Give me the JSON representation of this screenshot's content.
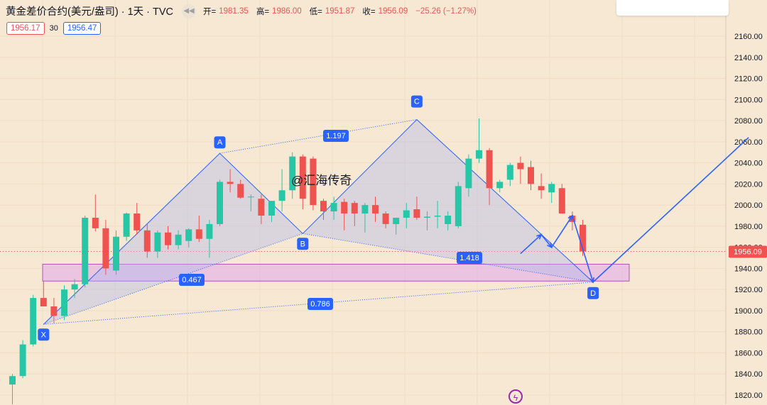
{
  "header": {
    "title": "黄金差价合约(美元/盎司) · 1天 · TVC",
    "collapse_icon": "double-chevron-left-icon",
    "open_label": "开=",
    "open_value": "1981.35",
    "high_label": "高=",
    "high_value": "1986.00",
    "low_label": "低=",
    "low_value": "1951.87",
    "close_label": "收=",
    "close_value": "1956.09",
    "change": "−25.26 (−1.27%)"
  },
  "trade": {
    "sell_price": "1956.17",
    "spread": "30",
    "buy_price": "1956.47"
  },
  "watermark": "@汇海传奇",
  "flash_icon": "lightning-bolt-icon",
  "colors": {
    "up": "#26c6a6",
    "down": "#ef5350",
    "pattern_line": "#2962ff",
    "pattern_fill": "#b0b8ea",
    "zone_fill": "#e6b8e6",
    "background": "#f7e8d4"
  },
  "chart_data": {
    "type": "candlestick",
    "y_axis": {
      "min": 1810,
      "max": 2180,
      "ticks": [
        1820,
        1840,
        1860,
        1880,
        1900,
        1920,
        1940,
        1960,
        1980,
        2000,
        2020,
        2040,
        2060,
        2080,
        2100,
        2120,
        2140,
        2160
      ],
      "side": "right"
    },
    "last_price": "1956.09",
    "candles": [
      {
        "o": 1830,
        "h": 1840,
        "l": 1810,
        "c": 1838
      },
      {
        "o": 1838,
        "h": 1872,
        "l": 1836,
        "c": 1868
      },
      {
        "o": 1868,
        "h": 1915,
        "l": 1866,
        "c": 1912
      },
      {
        "o": 1912,
        "h": 1928,
        "l": 1906,
        "c": 1904
      },
      {
        "o": 1904,
        "h": 1912,
        "l": 1888,
        "c": 1895
      },
      {
        "o": 1895,
        "h": 1924,
        "l": 1891,
        "c": 1920
      },
      {
        "o": 1920,
        "h": 1930,
        "l": 1912,
        "c": 1925
      },
      {
        "o": 1925,
        "h": 1990,
        "l": 1922,
        "c": 1988
      },
      {
        "o": 1988,
        "h": 2010,
        "l": 1975,
        "c": 1978
      },
      {
        "o": 1978,
        "h": 1986,
        "l": 1934,
        "c": 1940
      },
      {
        "o": 1938,
        "h": 1976,
        "l": 1934,
        "c": 1970
      },
      {
        "o": 1970,
        "h": 1993,
        "l": 1966,
        "c": 1992
      },
      {
        "o": 1992,
        "h": 2002,
        "l": 1972,
        "c": 1976
      },
      {
        "o": 1976,
        "h": 1982,
        "l": 1950,
        "c": 1956
      },
      {
        "o": 1956,
        "h": 1976,
        "l": 1950,
        "c": 1974
      },
      {
        "o": 1974,
        "h": 1980,
        "l": 1958,
        "c": 1962
      },
      {
        "o": 1962,
        "h": 1976,
        "l": 1958,
        "c": 1972
      },
      {
        "o": 1966,
        "h": 1978,
        "l": 1960,
        "c": 1977
      },
      {
        "o": 1977,
        "h": 1990,
        "l": 1965,
        "c": 1968
      },
      {
        "o": 1968,
        "h": 1986,
        "l": 1950,
        "c": 1982
      },
      {
        "o": 1982,
        "h": 2024,
        "l": 1980,
        "c": 2022
      },
      {
        "o": 2022,
        "h": 2034,
        "l": 2012,
        "c": 2020
      },
      {
        "o": 2020,
        "h": 2024,
        "l": 2006,
        "c": 2007
      },
      {
        "o": 2008,
        "h": 2010,
        "l": 1994,
        "c": 2008
      },
      {
        "o": 2006,
        "h": 2010,
        "l": 1982,
        "c": 1990
      },
      {
        "o": 1990,
        "h": 2002,
        "l": 1984,
        "c": 2004
      },
      {
        "o": 2004,
        "h": 2034,
        "l": 1994,
        "c": 2014
      },
      {
        "o": 2014,
        "h": 2050,
        "l": 2006,
        "c": 2046
      },
      {
        "o": 2046,
        "h": 2048,
        "l": 1996,
        "c": 2006
      },
      {
        "o": 2044,
        "h": 2046,
        "l": 1995,
        "c": 2000
      },
      {
        "o": 2004,
        "h": 2006,
        "l": 1986,
        "c": 1994
      },
      {
        "o": 1994,
        "h": 2008,
        "l": 1986,
        "c": 2002
      },
      {
        "o": 2003,
        "h": 2006,
        "l": 1976,
        "c": 1992
      },
      {
        "o": 2002,
        "h": 2004,
        "l": 1980,
        "c": 1992
      },
      {
        "o": 1992,
        "h": 2002,
        "l": 1974,
        "c": 2000
      },
      {
        "o": 2000,
        "h": 2008,
        "l": 1984,
        "c": 1992
      },
      {
        "o": 1992,
        "h": 1994,
        "l": 1978,
        "c": 1982
      },
      {
        "o": 1982,
        "h": 1988,
        "l": 1972,
        "c": 1988
      },
      {
        "o": 1988,
        "h": 2002,
        "l": 1978,
        "c": 1995
      },
      {
        "o": 1996,
        "h": 2008,
        "l": 1986,
        "c": 1988
      },
      {
        "o": 1988,
        "h": 1994,
        "l": 1976,
        "c": 1989
      },
      {
        "o": 1989,
        "h": 2004,
        "l": 1978,
        "c": 1990
      },
      {
        "o": 1982,
        "h": 1994,
        "l": 1976,
        "c": 1990
      },
      {
        "o": 1980,
        "h": 2022,
        "l": 1978,
        "c": 2018
      },
      {
        "o": 2016,
        "h": 2048,
        "l": 2008,
        "c": 2044
      },
      {
        "o": 2044,
        "h": 2082,
        "l": 2040,
        "c": 2052
      },
      {
        "o": 2052,
        "h": 2054,
        "l": 2000,
        "c": 2016
      },
      {
        "o": 2016,
        "h": 2024,
        "l": 2012,
        "c": 2022
      },
      {
        "o": 2024,
        "h": 2040,
        "l": 2018,
        "c": 2038
      },
      {
        "o": 2040,
        "h": 2046,
        "l": 2020,
        "c": 2034
      },
      {
        "o": 2036,
        "h": 2042,
        "l": 2014,
        "c": 2020
      },
      {
        "o": 2018,
        "h": 2030,
        "l": 2006,
        "c": 2014
      },
      {
        "o": 2012,
        "h": 2022,
        "l": 2002,
        "c": 2020
      },
      {
        "o": 2016,
        "h": 2020,
        "l": 1992,
        "c": 1992
      },
      {
        "o": 1990,
        "h": 1994,
        "l": 1976,
        "c": 1984
      },
      {
        "o": 1981.35,
        "h": 1986,
        "l": 1951.87,
        "c": 1956.09
      }
    ],
    "harmonic_pattern": {
      "points": [
        {
          "label": "X",
          "index": 3,
          "price": 1887
        },
        {
          "label": "A",
          "index": 20,
          "price": 2049
        },
        {
          "label": "B",
          "index": 28,
          "price": 1973
        },
        {
          "label": "C",
          "index": 39,
          "price": 2081
        },
        {
          "label": "D",
          "index": 56,
          "price": 1927
        }
      ],
      "ratios": [
        "1.197",
        "0.467",
        "1.418",
        "0.786"
      ]
    },
    "zone": {
      "from_price": 1928,
      "to_price": 1944
    },
    "projection": [
      {
        "index": 49,
        "price": 1954
      },
      {
        "index": 51,
        "price": 1972
      },
      {
        "index": 52,
        "price": 1960
      },
      {
        "index": 54,
        "price": 1990
      },
      {
        "index": 56,
        "price": 1927
      },
      {
        "index": 71,
        "price": 2064
      }
    ]
  }
}
